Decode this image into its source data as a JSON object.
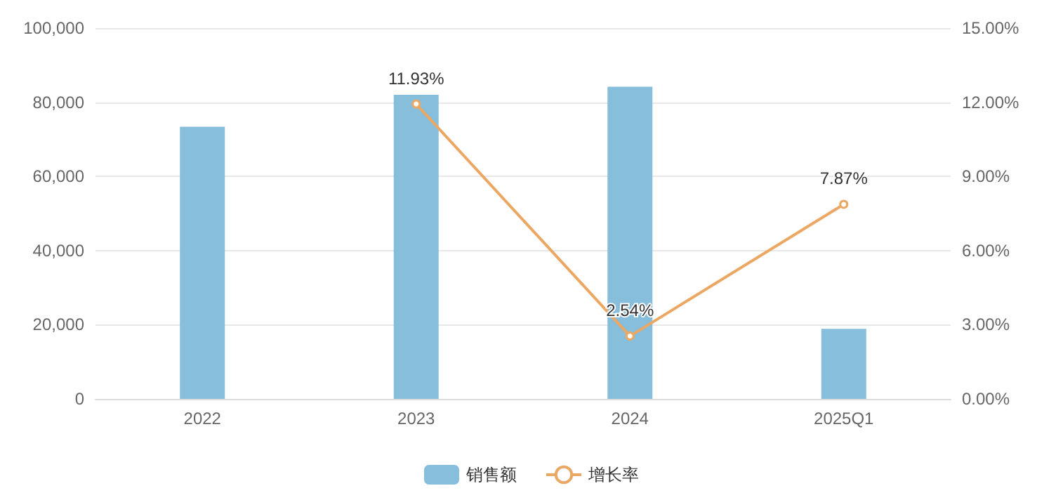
{
  "chart_data": {
    "type": "bar",
    "categories": [
      "2022",
      "2023",
      "2024",
      "2025Q1"
    ],
    "series": [
      {
        "name": "销售额",
        "color": "#86bedb",
        "values": [
          73400,
          82000,
          84200,
          18900
        ]
      },
      {
        "name": "增长率",
        "type": "line",
        "axis": "y2",
        "color": "#eba865",
        "marker": "circle",
        "values": [
          null,
          11.93,
          2.54,
          7.87
        ],
        "value_labels": [
          null,
          "11.93%",
          "2.54%",
          "7.87%"
        ]
      }
    ],
    "ylim": [
      0,
      100000
    ],
    "yticks": [
      {
        "value": 0,
        "label": "0"
      },
      {
        "value": 20000,
        "label": "20,000"
      },
      {
        "value": 40000,
        "label": "40,000"
      },
      {
        "value": 60000,
        "label": "60,000"
      },
      {
        "value": 80000,
        "label": "80,000"
      },
      {
        "value": 100000,
        "label": "100,000"
      }
    ],
    "y2lim": [
      0,
      15
    ],
    "y2ticks": [
      {
        "value": 0,
        "label": "0.00%"
      },
      {
        "value": 3,
        "label": "3.00%"
      },
      {
        "value": 6,
        "label": "6.00%"
      },
      {
        "value": 9,
        "label": "9.00%"
      },
      {
        "value": 12,
        "label": "12.00%"
      },
      {
        "value": 15,
        "label": "15.00%"
      }
    ],
    "grid": "y",
    "legend": "bottom"
  }
}
